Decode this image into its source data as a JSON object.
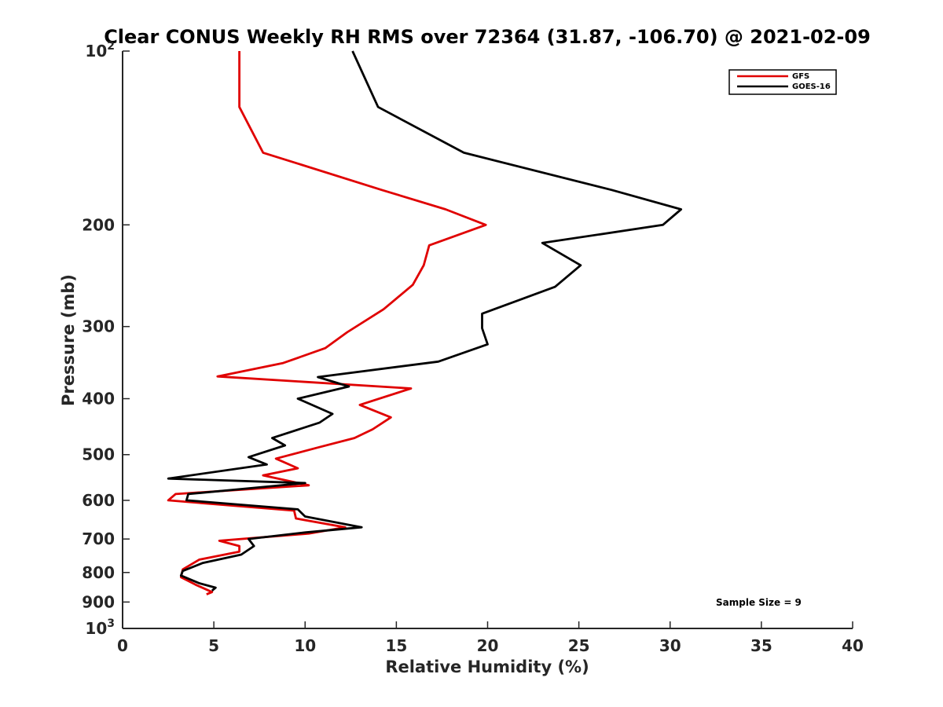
{
  "chart_data": {
    "type": "line",
    "title": "Clear CONUS Weekly RH RMS over 72364 (31.87, -106.70) @ 2021-02-09",
    "xlabel": "Relative Humidity (%)",
    "ylabel": "Pressure (mb)",
    "xlim": [
      0,
      40
    ],
    "ylim": [
      100,
      1000
    ],
    "y_scale": "log",
    "y_reversed": true,
    "x_ticks": [
      "0",
      "5",
      "10",
      "15",
      "20",
      "25",
      "30",
      "35",
      "40"
    ],
    "y_ticks": [
      {
        "value": 100,
        "base": "10",
        "exp": "2"
      },
      {
        "value": 200,
        "label": "200"
      },
      {
        "value": 300,
        "label": "300"
      },
      {
        "value": 400,
        "label": "400"
      },
      {
        "value": 500,
        "label": "500"
      },
      {
        "value": 600,
        "label": "600"
      },
      {
        "value": 700,
        "label": "700"
      },
      {
        "value": 800,
        "label": "800"
      },
      {
        "value": 900,
        "label": "900"
      },
      {
        "value": 1000,
        "base": "10",
        "exp": "3"
      }
    ],
    "legend_position": "top-right",
    "grid": false,
    "annotation": "Sample Size = 9",
    "series": [
      {
        "name": "GFS",
        "color": "#e00000",
        "points": [
          [
            6.4,
            100
          ],
          [
            6.4,
            125
          ],
          [
            7.7,
            150
          ],
          [
            14.2,
            174
          ],
          [
            17.7,
            188
          ],
          [
            19.9,
            200
          ],
          [
            16.8,
            217
          ],
          [
            16.5,
            235
          ],
          [
            15.9,
            254
          ],
          [
            14.3,
            280
          ],
          [
            12.3,
            307
          ],
          [
            11.1,
            327
          ],
          [
            8.8,
            347
          ],
          [
            5.2,
            366
          ],
          [
            15.8,
            384
          ],
          [
            13.0,
            410
          ],
          [
            14.7,
            431
          ],
          [
            13.7,
            452
          ],
          [
            12.7,
            468
          ],
          [
            10.7,
            486
          ],
          [
            8.4,
            508
          ],
          [
            9.6,
            528
          ],
          [
            7.7,
            543
          ],
          [
            10.2,
            565
          ],
          [
            2.9,
            585
          ],
          [
            2.5,
            600
          ],
          [
            9.4,
            625
          ],
          [
            9.5,
            645
          ],
          [
            12.2,
            668
          ],
          [
            10.2,
            685
          ],
          [
            5.3,
            705
          ],
          [
            6.4,
            720
          ],
          [
            6.4,
            736
          ],
          [
            4.2,
            760
          ],
          [
            3.3,
            790
          ],
          [
            3.2,
            815
          ],
          [
            4.0,
            840
          ],
          [
            4.9,
            865
          ],
          [
            4.6,
            873
          ]
        ]
      },
      {
        "name": "GOES-16",
        "color": "#000000",
        "points": [
          [
            12.6,
            100
          ],
          [
            14.0,
            125
          ],
          [
            18.7,
            150
          ],
          [
            26.8,
            174
          ],
          [
            30.6,
            188
          ],
          [
            29.6,
            200
          ],
          [
            23.0,
            215
          ],
          [
            25.1,
            235
          ],
          [
            23.7,
            256
          ],
          [
            19.7,
            285
          ],
          [
            19.7,
            302
          ],
          [
            20.0,
            322
          ],
          [
            17.3,
            345
          ],
          [
            10.7,
            367
          ],
          [
            12.4,
            381
          ],
          [
            9.6,
            400
          ],
          [
            11.5,
            425
          ],
          [
            10.8,
            440
          ],
          [
            8.2,
            468
          ],
          [
            8.9,
            482
          ],
          [
            6.9,
            505
          ],
          [
            7.9,
            520
          ],
          [
            2.5,
            550
          ],
          [
            10.0,
            560
          ],
          [
            3.6,
            585
          ],
          [
            3.5,
            600
          ],
          [
            9.6,
            622
          ],
          [
            10.0,
            640
          ],
          [
            13.1,
            668
          ],
          [
            10.0,
            682
          ],
          [
            6.9,
            700
          ],
          [
            7.2,
            720
          ],
          [
            6.5,
            745
          ],
          [
            4.4,
            770
          ],
          [
            3.3,
            795
          ],
          [
            3.2,
            810
          ],
          [
            4.2,
            835
          ],
          [
            5.1,
            850
          ],
          [
            4.9,
            860
          ]
        ]
      }
    ]
  }
}
